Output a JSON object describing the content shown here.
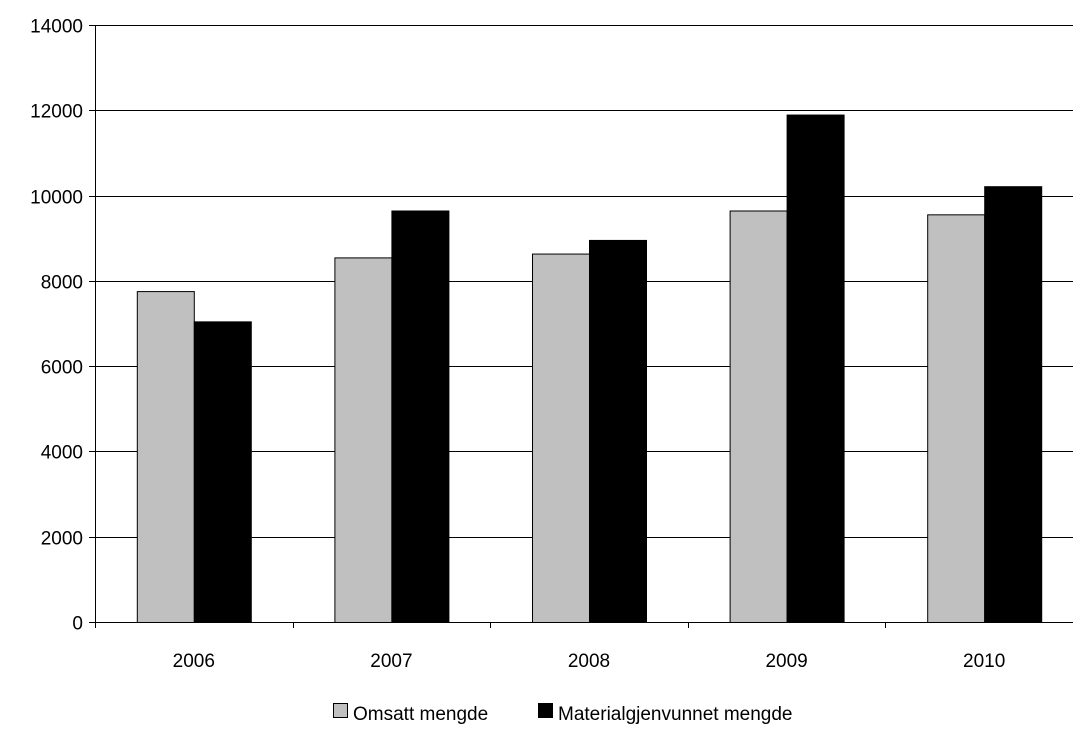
{
  "chart_data": {
    "type": "bar",
    "title": "",
    "xlabel": "",
    "ylabel": "",
    "categories": [
      "2006",
      "2007",
      "2008",
      "2009",
      "2010"
    ],
    "series": [
      {
        "name": "Omsatt mengde",
        "color": "#c0c0c0",
        "values": [
          7760,
          8550,
          8640,
          9650,
          9560
        ]
      },
      {
        "name": "Materialgjenvunnet mengde",
        "color": "#000000",
        "values": [
          7050,
          9650,
          8960,
          11900,
          10220
        ]
      }
    ],
    "ylim": [
      0,
      14000
    ],
    "yticks": [
      0,
      2000,
      4000,
      6000,
      8000,
      10000,
      12000,
      14000
    ],
    "grid": "horizontal",
    "legend": "bottom-center"
  }
}
